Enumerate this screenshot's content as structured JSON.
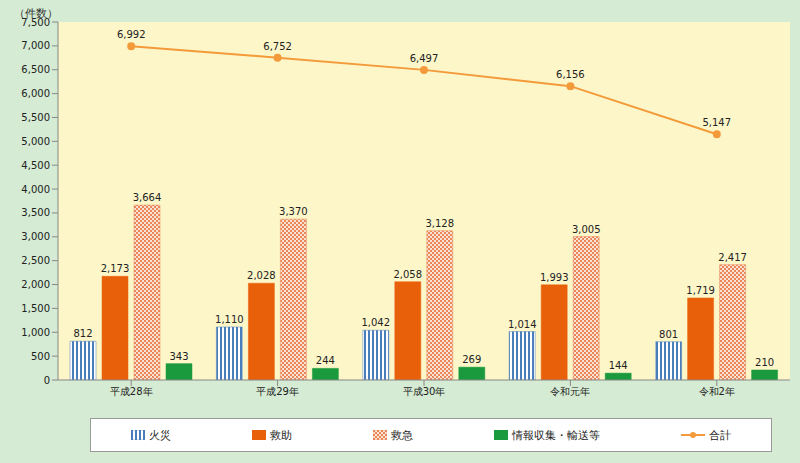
{
  "chart_data": {
    "type": "bar",
    "y_label": "（件数）",
    "categories": [
      "平成28年",
      "平成29年",
      "平成30年",
      "令和元年",
      "令和2年"
    ],
    "series": [
      {
        "name": "火災",
        "color": "#4a7ebb",
        "values": [
          812,
          1110,
          1042,
          1014,
          801
        ],
        "value_labels": [
          "812",
          "1,110",
          "1,042",
          "1,014",
          "801"
        ]
      },
      {
        "name": "救助",
        "color": "#e8600a",
        "values": [
          2173,
          2028,
          2058,
          1993,
          1719
        ],
        "value_labels": [
          "2,173",
          "2,028",
          "2,058",
          "1,993",
          "1,719"
        ]
      },
      {
        "name": "救急",
        "color": "#e9875a",
        "values": [
          3664,
          3370,
          3128,
          3005,
          2417
        ],
        "value_labels": [
          "3,664",
          "3,370",
          "3,128",
          "3,005",
          "2,417"
        ]
      },
      {
        "name": "情報収集・輸送等",
        "color": "#1a9a3c",
        "values": [
          343,
          244,
          269,
          144,
          210
        ],
        "value_labels": [
          "343",
          "244",
          "269",
          "144",
          "210"
        ]
      },
      {
        "name": "合計",
        "type": "line",
        "color": "#f39a3a",
        "marker": "circle",
        "values": [
          6992,
          6752,
          6497,
          6156,
          5147
        ],
        "value_labels": [
          "6,992",
          "6,752",
          "6,497",
          "6,156",
          "5,147"
        ]
      }
    ],
    "ylim": [
      0,
      7500
    ],
    "yticks": [
      0,
      500,
      {
        "value": 1000,
        "label": "1,000"
      },
      {
        "value": 1500,
        "label": "1,500"
      },
      {
        "value": 2000,
        "label": "2,000"
      },
      {
        "value": 2500,
        "label": "2,500"
      },
      {
        "value": 3000,
        "label": "3,000"
      },
      {
        "value": 3500,
        "label": "3,500"
      },
      {
        "value": 4000,
        "label": "4,000"
      },
      {
        "value": 4500,
        "label": "4,500"
      },
      {
        "value": 5000,
        "label": "5,000"
      },
      {
        "value": 5500,
        "label": "5,500"
      },
      {
        "value": 6000,
        "label": "6,000"
      },
      {
        "value": 6500,
        "label": "6,500"
      },
      {
        "value": 7000,
        "label": "7,000"
      },
      {
        "value": 7500,
        "label": "7,500"
      }
    ],
    "grid": false,
    "legend": "bottom",
    "data_labels": true
  }
}
